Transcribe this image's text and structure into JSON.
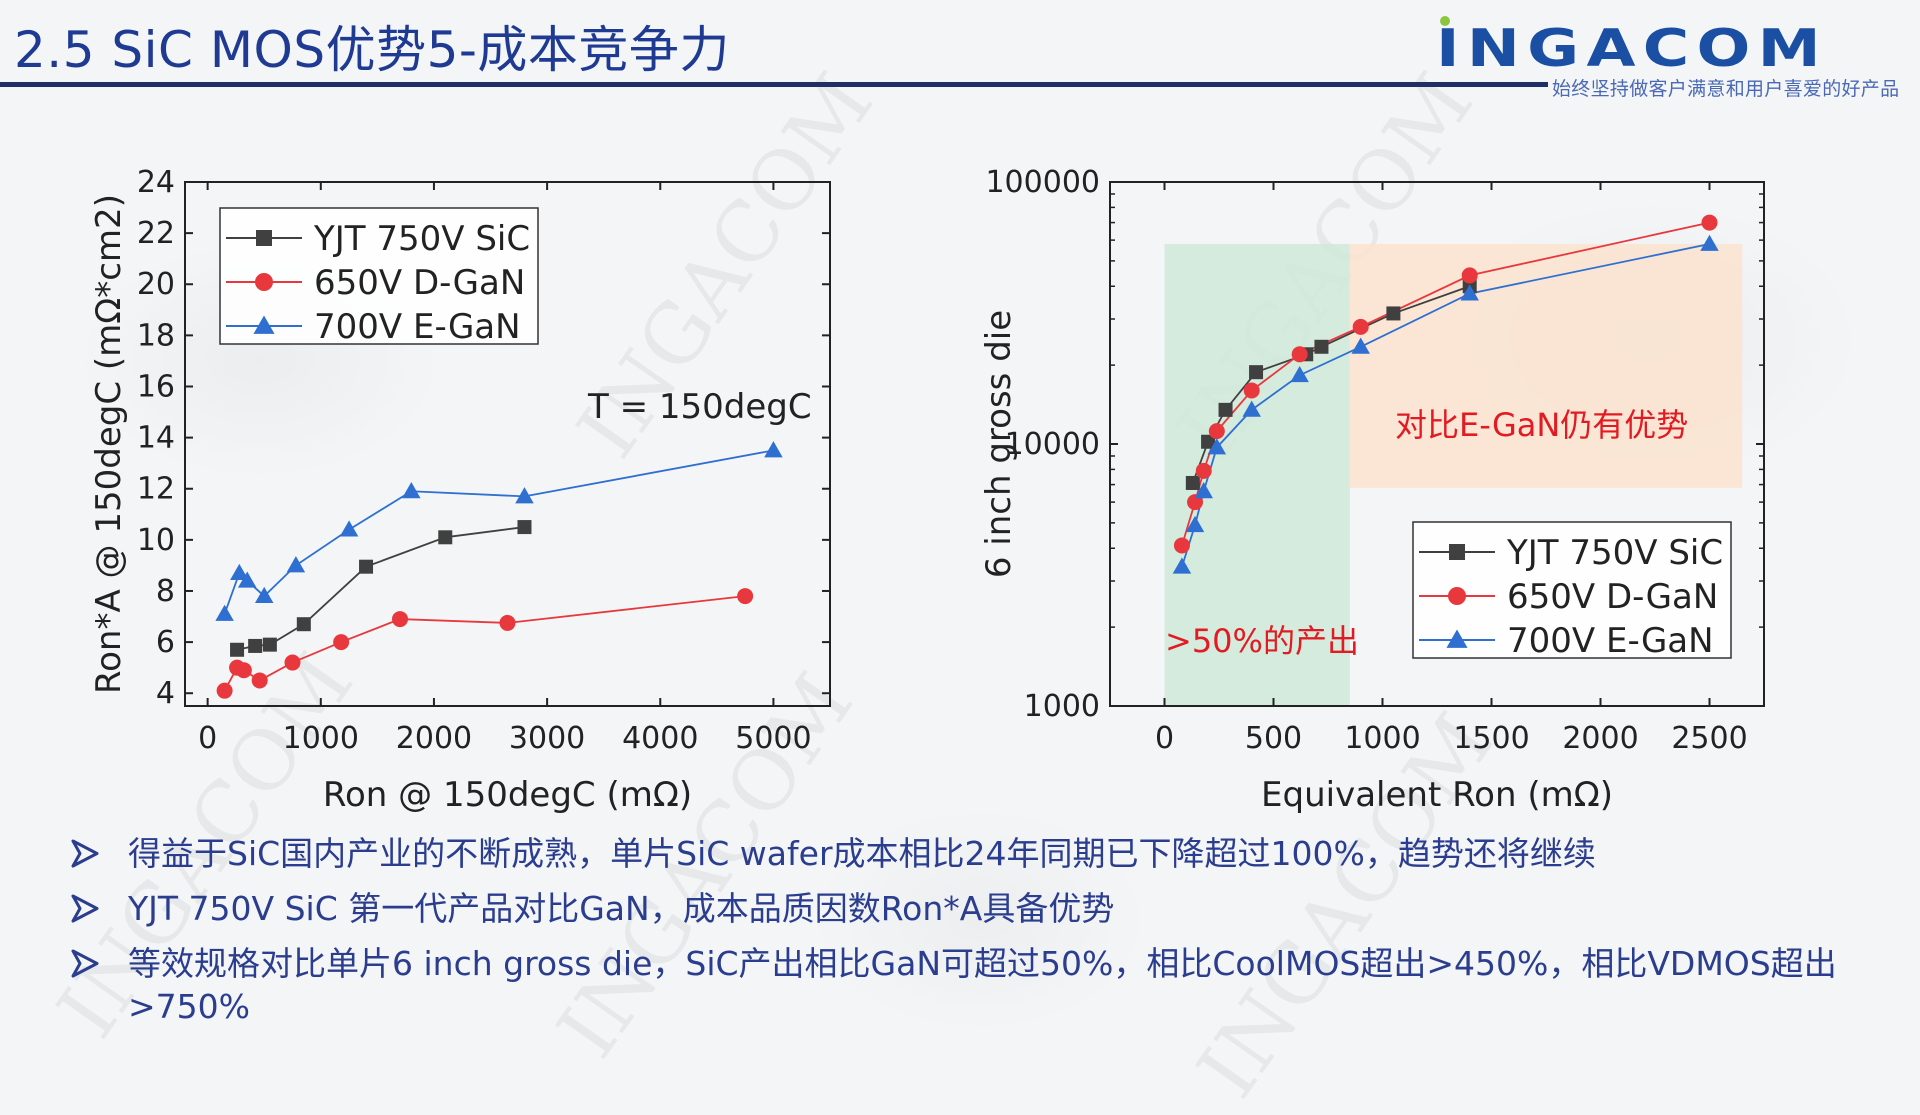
{
  "header": {
    "title": "2.5 SiC MOS优势5-成本竞争力",
    "logo_text": "INGACOM",
    "slogan": "始终坚持做客户满意和用户喜爱的好产品",
    "accent_color": "#1f2f66",
    "title_color": "#1f3a93",
    "logo_color": "#1a4fa3",
    "logo_dot_color": "#8cc63f"
  },
  "watermark_text": "INGACOM",
  "chart_data": [
    {
      "type": "line",
      "xlabel": "Ron @ 150degC (mΩ)",
      "ylabel": "Ron*A @ 150degC (mΩ*cm2)",
      "xlim": [
        -200,
        5500
      ],
      "ylim": [
        3.5,
        24
      ],
      "xticks": [
        0,
        1000,
        2000,
        3000,
        4000,
        5000
      ],
      "yticks": [
        4,
        6,
        8,
        10,
        12,
        14,
        16,
        18,
        20,
        22,
        24
      ],
      "annotation": "T = 150degC",
      "legend_position": "top-left",
      "series": [
        {
          "name": "YJT 750V SiC",
          "marker": "square",
          "color": "#404040",
          "x": [
            260,
            420,
            550,
            850,
            1400,
            2100,
            2800
          ],
          "y": [
            5.7,
            5.85,
            5.9,
            6.7,
            8.95,
            10.1,
            10.5
          ]
        },
        {
          "name": "650V D-GaN",
          "marker": "circle",
          "color": "#e8383d",
          "x": [
            150,
            260,
            320,
            460,
            750,
            1180,
            1700,
            2650,
            4750
          ],
          "y": [
            4.1,
            5.0,
            4.9,
            4.5,
            5.2,
            6.0,
            6.9,
            6.75,
            7.8
          ]
        },
        {
          "name": "700V E-GaN",
          "marker": "triangle",
          "color": "#2e6fd1",
          "x": [
            150,
            280,
            350,
            500,
            780,
            1250,
            1800,
            2800,
            5000
          ],
          "y": [
            7.1,
            8.7,
            8.4,
            7.8,
            9.0,
            10.4,
            11.9,
            11.7,
            13.5
          ]
        }
      ]
    },
    {
      "type": "line",
      "xlabel": "Equivalent Ron (mΩ)",
      "ylabel": "6 inch gross die",
      "xlim": [
        -250,
        2750
      ],
      "ylim": [
        1000,
        100000
      ],
      "yscale": "log",
      "xticks": [
        0,
        500,
        1000,
        1500,
        2000,
        2500
      ],
      "yticks": [
        1000,
        10000,
        100000
      ],
      "legend_position": "bottom-right",
      "regions": [
        {
          "label": ">50%的产出",
          "x0": 0,
          "x1": 850,
          "y0": 1000,
          "y1": 58000,
          "color": "#cfe9d8"
        },
        {
          "label": "对比E-GaN仍有优势",
          "x0": 850,
          "x1": 2650,
          "y0": 6800,
          "y1": 58000,
          "color": "#fbe3cf"
        }
      ],
      "series": [
        {
          "name": "YJT 750V SiC",
          "marker": "square",
          "color": "#404040",
          "x": [
            130,
            200,
            280,
            420,
            650,
            720,
            1050,
            1400
          ],
          "y": [
            7100,
            10200,
            13500,
            18800,
            22000,
            23500,
            31500,
            40000
          ]
        },
        {
          "name": "650V D-GaN",
          "marker": "circle",
          "color": "#e8383d",
          "x": [
            80,
            140,
            180,
            240,
            400,
            620,
            900,
            1400,
            2500
          ],
          "y": [
            4100,
            6000,
            7900,
            11200,
            16000,
            22000,
            28000,
            44000,
            70000
          ]
        },
        {
          "name": "700V E-GaN",
          "marker": "triangle",
          "color": "#2e6fd1",
          "x": [
            80,
            140,
            180,
            240,
            400,
            620,
            900,
            1400,
            2500
          ],
          "y": [
            3400,
            4900,
            6600,
            9700,
            13500,
            18300,
            23500,
            37500,
            58000
          ]
        }
      ]
    }
  ],
  "bullets": [
    "得益于SiC国内产业的不断成熟，单片SiC wafer成本相比24年同期已下降超过100%，趋势还将继续",
    "YJT 750V SiC 第一代产品对比GaN，成本品质因数Ron*A具备优势",
    "等效规格对比单片6 inch gross die，SiC产出相比GaN可超过50%，相比CoolMOS超出>450%，相比VDMOS超出>750%"
  ]
}
